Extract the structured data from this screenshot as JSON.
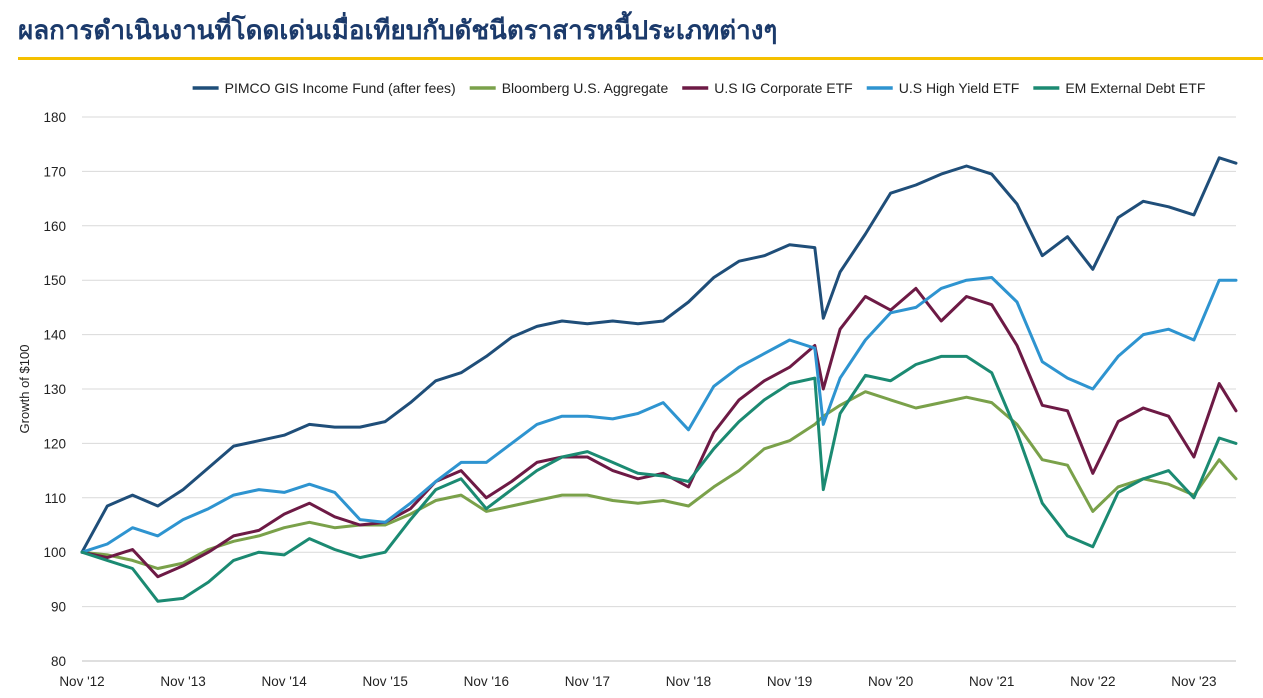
{
  "page": {
    "title": "ผลการดำเนินงานที่โดดเด่นเมื่อเทียบกับดัชนีตราสารหนี้ประเภทต่างๆ",
    "accent_color": "#f5c000",
    "title_color": "#1b3a6b"
  },
  "chart_data": {
    "type": "line",
    "title": "",
    "xlabel": "",
    "ylabel": "Growth of $100",
    "ylim": [
      80,
      180
    ],
    "yticks": [
      80,
      90,
      100,
      110,
      120,
      130,
      140,
      150,
      160,
      170,
      180
    ],
    "grid": "horizontal",
    "legend_position": "top",
    "x": [
      "2012-11",
      "2013-02",
      "2013-05",
      "2013-08",
      "2013-11",
      "2014-02",
      "2014-05",
      "2014-08",
      "2014-11",
      "2015-02",
      "2015-05",
      "2015-08",
      "2015-11",
      "2016-02",
      "2016-05",
      "2016-08",
      "2016-11",
      "2017-02",
      "2017-05",
      "2017-08",
      "2017-11",
      "2018-02",
      "2018-05",
      "2018-08",
      "2018-11",
      "2019-02",
      "2019-05",
      "2019-08",
      "2019-11",
      "2020-02",
      "2020-03",
      "2020-05",
      "2020-08",
      "2020-11",
      "2021-02",
      "2021-05",
      "2021-08",
      "2021-11",
      "2022-02",
      "2022-05",
      "2022-08",
      "2022-11",
      "2023-02",
      "2023-05",
      "2023-08",
      "2023-11",
      "2024-02",
      "2024-04"
    ],
    "x_tick_labels": [
      "Nov '12",
      "Nov '13",
      "Nov '14",
      "Nov '15",
      "Nov '16",
      "Nov '17",
      "Nov '18",
      "Nov '19",
      "Nov '20",
      "Nov '21",
      "Nov '22",
      "Nov '23"
    ],
    "series": [
      {
        "name": "PIMCO GIS Income Fund (after fees)",
        "color": "#1f4e79",
        "values": [
          100,
          108.5,
          110.5,
          108.5,
          111.5,
          115.5,
          119.5,
          120.5,
          121.5,
          123.5,
          123,
          123,
          124,
          127.5,
          131.5,
          133,
          136,
          139.5,
          141.5,
          142.5,
          142,
          142.5,
          142,
          142.5,
          146,
          150.5,
          153.5,
          154.5,
          156.5,
          156,
          143,
          151.5,
          158.5,
          166,
          167.5,
          169.5,
          171,
          169.5,
          164,
          154.5,
          158,
          152,
          161.5,
          164.5,
          163.5,
          162,
          172.5,
          171.5
        ]
      },
      {
        "name": "Bloomberg U.S. Aggregate",
        "color": "#7aa14a",
        "values": [
          100,
          99.5,
          98.5,
          97,
          98,
          100.5,
          102,
          103,
          104.5,
          105.5,
          104.5,
          105,
          105,
          107,
          109.5,
          110.5,
          107.5,
          108.5,
          109.5,
          110.5,
          110.5,
          109.5,
          109,
          109.5,
          108.5,
          112,
          115,
          119,
          120.5,
          123.5,
          125,
          127,
          129.5,
          128,
          126.5,
          127.5,
          128.5,
          127.5,
          123.5,
          117,
          116,
          107.5,
          112,
          113.5,
          112.5,
          110.5,
          117,
          113.5
        ]
      },
      {
        "name": "U.S IG Corporate ETF",
        "color": "#6d1a45",
        "values": [
          100,
          99,
          100.5,
          95.5,
          97.5,
          100,
          103,
          104,
          107,
          109,
          106.5,
          105,
          105.5,
          108,
          113,
          115,
          110,
          113,
          116.5,
          117.5,
          117.5,
          115,
          113.5,
          114.5,
          112,
          122,
          128,
          131.5,
          134,
          138,
          130,
          141,
          147,
          144.5,
          148.5,
          142.5,
          147,
          145.5,
          138,
          127,
          126,
          114.5,
          124,
          126.5,
          125,
          117.5,
          131,
          126
        ]
      },
      {
        "name": "U.S High Yield ETF",
        "color": "#2e94d0",
        "values": [
          100,
          101.5,
          104.5,
          103,
          106,
          108,
          110.5,
          111.5,
          111,
          112.5,
          111,
          106,
          105.5,
          109,
          113,
          116.5,
          116.5,
          120,
          123.5,
          125,
          125,
          124.5,
          125.5,
          127.5,
          122.5,
          130.5,
          134,
          136.5,
          139,
          137.5,
          123.5,
          132,
          139,
          144,
          145,
          148.5,
          150,
          150.5,
          146,
          135,
          132,
          130,
          136,
          140,
          141,
          139,
          150,
          150
        ]
      },
      {
        "name": "EM External Debt ETF",
        "color": "#1b8a72",
        "values": [
          100,
          98.5,
          97,
          91,
          91.5,
          94.5,
          98.5,
          100,
          99.5,
          102.5,
          100.5,
          99,
          100,
          106,
          111.5,
          113.5,
          108,
          111.5,
          115,
          117.5,
          118.5,
          116.5,
          114.5,
          114,
          113,
          119,
          124,
          128,
          131,
          132,
          111.5,
          125.5,
          132.5,
          131.5,
          134.5,
          136,
          136,
          133,
          122,
          109,
          103,
          101,
          111,
          113.5,
          115,
          110,
          121,
          120
        ]
      }
    ]
  }
}
